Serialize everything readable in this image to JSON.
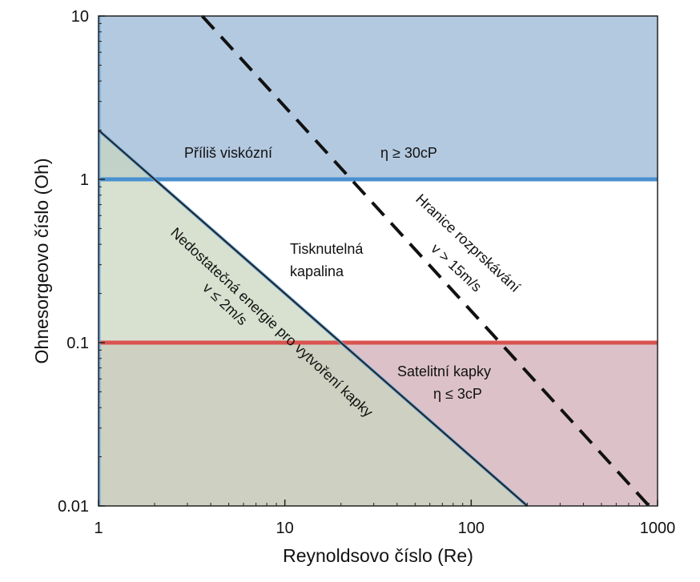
{
  "chart_data": {
    "type": "area",
    "xscale": "log",
    "yscale": "log",
    "xlim": [
      1,
      1000
    ],
    "ylim": [
      0.01,
      10
    ],
    "xlabel": "Reynoldsovo číslo (Re)",
    "ylabel": "Ohnesorgeovo číslo (Oh)",
    "x_ticks": [
      "1",
      "10",
      "100",
      "1000"
    ],
    "y_ticks": [
      "0.01",
      "0.1",
      "1",
      "10"
    ],
    "regions": [
      {
        "label": "Příliš viskózní",
        "condition": "η ≥ 30cP",
        "oh_range": [
          1,
          10
        ],
        "color": "#b3c9e0"
      },
      {
        "label": "Tisknutelná kapalina",
        "oh_range": [
          0.1,
          1
        ],
        "color": "#ffffff"
      },
      {
        "label": "Satelitní kapky",
        "condition": "η ≤ 3cP",
        "oh_range": [
          0.01,
          0.1
        ],
        "color": "#dcc2c8"
      },
      {
        "label": "Nedostatečná energie pro vytvoření kapky",
        "condition": "v ≤ 2m/s",
        "color": "#c9d6be"
      }
    ],
    "boundaries": [
      {
        "name": "upper",
        "oh": 1,
        "color": "#4a90d0"
      },
      {
        "name": "lower",
        "oh": 0.1,
        "color": "#d9534f"
      },
      {
        "name": "Nedostatečná energie pro vytvoření kapky",
        "points": [
          [
            1,
            2
          ],
          [
            200,
            0.01
          ]
        ],
        "color": "#222222"
      },
      {
        "name": "Hranice rozprskávání",
        "condition": "v > 15m/s",
        "points": [
          [
            3.6,
            10
          ],
          [
            900,
            0.01
          ]
        ],
        "style": "dashed",
        "color": "#111111"
      }
    ]
  },
  "labels": {
    "too_viscous": "Příliš viskózní",
    "too_viscous_cond": "η ≥ 30cP",
    "printable_1": "Tisknutelná",
    "printable_2": "kapalina",
    "satellite": "Satelitní kapky",
    "satellite_cond": "η ≤ 3cP",
    "insufficient": "Nedostatečná energie pro vytvoření kapky",
    "insufficient_cond": "v ≤ 2m/s",
    "splash": "Hranice rozprskávání",
    "splash_cond": "v > 15m/s"
  }
}
